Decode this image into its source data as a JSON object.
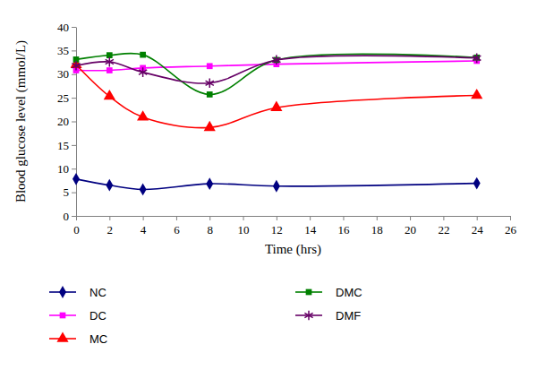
{
  "chart_data": {
    "type": "line",
    "x_label": "Time (hrs)",
    "y_label": "Blood glucose level (mmol/L)",
    "x": [
      0,
      2,
      4,
      8,
      12,
      24
    ],
    "xlim": [
      0,
      26
    ],
    "xticks": [
      0,
      2,
      4,
      6,
      8,
      10,
      12,
      14,
      16,
      18,
      20,
      22,
      24,
      26
    ],
    "ylim": [
      0,
      40
    ],
    "yticks": [
      0,
      5,
      10,
      15,
      20,
      25,
      30,
      35,
      40
    ],
    "grid": false,
    "legend": "bottom",
    "series": [
      {
        "name": "NC",
        "color": "#000080",
        "marker": "diamond",
        "values": [
          7.8,
          6.5,
          5.6,
          6.8,
          6.3,
          6.9
        ]
      },
      {
        "name": "DC",
        "color": "#ff00ff",
        "marker": "square",
        "values": [
          30.8,
          30.8,
          31.3,
          31.7,
          32.1,
          32.8
        ]
      },
      {
        "name": "MC",
        "color": "#ff0000",
        "marker": "triangle",
        "values": [
          32.0,
          25.3,
          20.9,
          18.7,
          22.9,
          25.5
        ]
      },
      {
        "name": "DMC",
        "color": "#008000",
        "marker": "square",
        "values": [
          33.1,
          34.0,
          34.1,
          25.7,
          33.0,
          33.5
        ]
      },
      {
        "name": "DMF",
        "color": "#660066",
        "marker": "asterisk",
        "values": [
          31.8,
          32.6,
          30.4,
          28.1,
          33.0,
          33.4
        ]
      }
    ]
  }
}
